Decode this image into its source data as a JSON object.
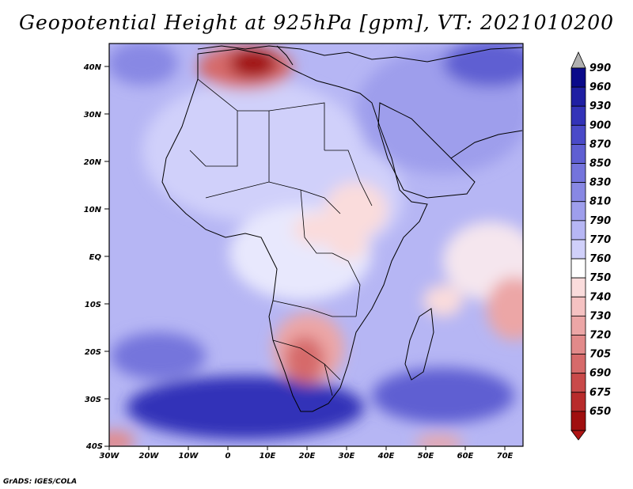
{
  "title": "Geopotential Height at 925hPa [gpm], VT: 2021010200",
  "credit": "GrADS: IGES/COLA",
  "map": {
    "region": "Africa and Middle East",
    "lat_labels": [
      "40N",
      "30N",
      "20N",
      "10N",
      "EQ",
      "10S",
      "20S",
      "30S",
      "40S"
    ],
    "lon_labels": [
      "30W",
      "20W",
      "10W",
      "0",
      "10E",
      "20E",
      "30E",
      "40E",
      "50E",
      "60E",
      "70E"
    ],
    "lat_range": [
      -40,
      44
    ],
    "lon_range": [
      -30,
      75
    ]
  },
  "colorbar": {
    "levels": [
      "990",
      "960",
      "930",
      "900",
      "870",
      "850",
      "830",
      "810",
      "790",
      "770",
      "760",
      "750",
      "740",
      "730",
      "720",
      "705",
      "690",
      "675",
      "650"
    ],
    "colors": [
      "#0a0a8a",
      "#1f1fa3",
      "#3333b8",
      "#4a4ac8",
      "#5f5fd2",
      "#7474dc",
      "#8888e4",
      "#9e9eec",
      "#b6b6f4",
      "#d0d0fa",
      "#ffffff",
      "#fadcdc",
      "#f5c2c2",
      "#eca6a6",
      "#e28a8a",
      "#d66a6a",
      "#c94a4a",
      "#b82b2b",
      "#a00f0f"
    ],
    "top_arrow_color": "#b0b0b0",
    "bottom_arrow_color": "#b01515"
  }
}
